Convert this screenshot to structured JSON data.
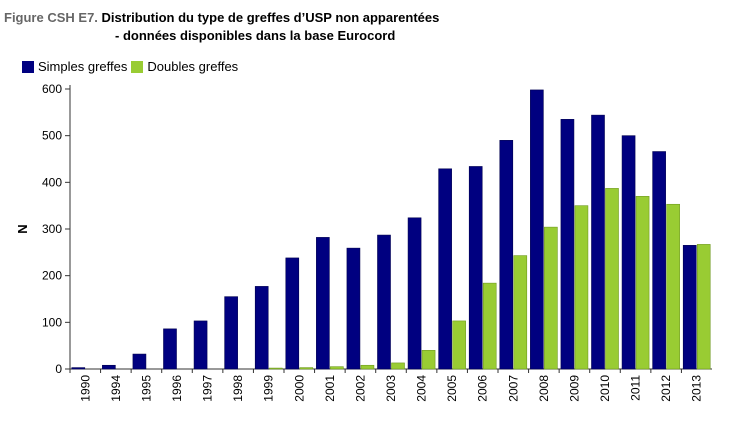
{
  "title": {
    "figure_label": "Figure CSH E7.",
    "line1": "Distribution du type de greffes d’USP non apparentées",
    "line2": "- données disponibles dans la base Eurocord"
  },
  "chart_data": {
    "type": "bar",
    "categories": [
      "1990",
      "1994",
      "1995",
      "1996",
      "1997",
      "1998",
      "1999",
      "2000",
      "2001",
      "2002",
      "2003",
      "2004",
      "2005",
      "2006",
      "2007",
      "2008",
      "2009",
      "2010",
      "2011",
      "2012",
      "2013"
    ],
    "series": [
      {
        "name": "Simples greffes",
        "color": "#000080",
        "values": [
          3,
          8,
          32,
          86,
          103,
          155,
          177,
          238,
          282,
          259,
          287,
          324,
          429,
          434,
          490,
          598,
          535,
          544,
          500,
          466,
          265
        ]
      },
      {
        "name": "Doubles greffes",
        "color": "#99cc33",
        "values": [
          0,
          0,
          0,
          0,
          0,
          0,
          2,
          3,
          5,
          8,
          13,
          40,
          103,
          184,
          243,
          304,
          350,
          387,
          370,
          353,
          267
        ]
      }
    ],
    "ylabel": "N",
    "ylim": [
      0,
      600
    ],
    "yticks": [
      0,
      100,
      200,
      300,
      400,
      500,
      600
    ],
    "grid": false,
    "legend_position": "top-left"
  }
}
